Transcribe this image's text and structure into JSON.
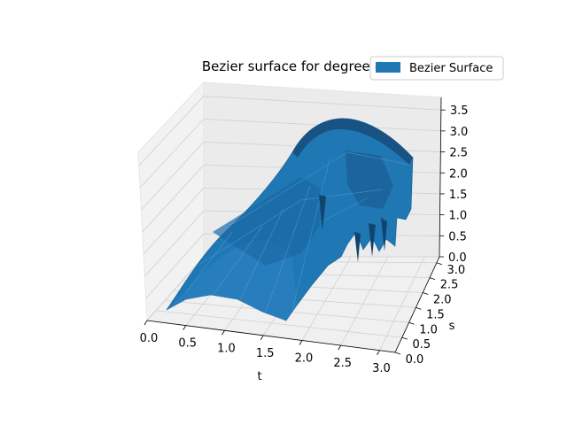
{
  "chart_data": {
    "type": "surface3d",
    "title": "Bezier surface for degree 4",
    "xlabel": "t",
    "ylabel": "s",
    "zlabel": "",
    "x_ticks": [
      "0.0",
      "0.5",
      "1.0",
      "1.5",
      "2.0",
      "2.5",
      "3.0"
    ],
    "y_ticks": [
      "0.0",
      "0.5",
      "1.0",
      "1.5",
      "2.0",
      "2.5",
      "3.0"
    ],
    "z_ticks": [
      "0.0",
      "0.5",
      "1.0",
      "1.5",
      "2.0",
      "2.5",
      "3.0",
      "3.5"
    ],
    "xlim": [
      0,
      3.2
    ],
    "ylim": [
      0,
      3.2
    ],
    "zlim": [
      0,
      3.8
    ],
    "surface_peak": 3.6,
    "legend": [
      "Bezier Surface"
    ],
    "legend_location": "top-right",
    "surface_color": "#1f77b4",
    "grid": true
  }
}
